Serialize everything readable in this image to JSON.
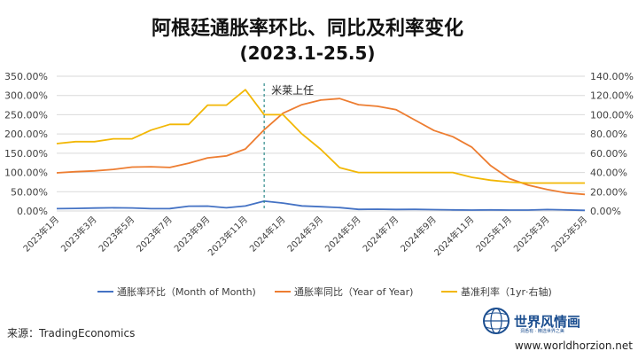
{
  "title_line1": "阿根廷通胀率环比、同比及利率变化",
  "title_line2": "(2023.1-25.5)",
  "source": "来源：TradingEconomics",
  "brand": {
    "name": "世界风情画",
    "tagline": "洞悉有 · 精选世界之美",
    "website": "www.worldhorzion.net"
  },
  "colors": {
    "mom": "#4472C4",
    "yoy": "#ED7D31",
    "rate": "#F2B705",
    "grid": "#d9d9d9",
    "annotation_line": "#2e8b8b"
  },
  "chart_data": {
    "type": "line",
    "x": [
      "2023年1月",
      "2023年2月",
      "2023年3月",
      "2023年4月",
      "2023年5月",
      "2023年6月",
      "2023年7月",
      "2023年8月",
      "2023年9月",
      "2023年10月",
      "2023年11月",
      "2023年12月",
      "2024年1月",
      "2024年2月",
      "2024年3月",
      "2024年4月",
      "2024年5月",
      "2024年6月",
      "2024年7月",
      "2024年8月",
      "2024年9月",
      "2024年10月",
      "2024年11月",
      "2024年12月",
      "2025年1月",
      "2025年2月",
      "2025年3月",
      "2025年4月",
      "2025年5月"
    ],
    "x_tick_labels": [
      "2023年1月",
      "2023年3月",
      "2023年5月",
      "2023年7月",
      "2023年9月",
      "2023年11月",
      "2024年1月",
      "2024年3月",
      "2024年5月",
      "2024年7月",
      "2024年9月",
      "2024年11月",
      "2025年1月",
      "2025年3月",
      "2025年5月"
    ],
    "y_left": {
      "ticks": [
        "0.00%",
        "50.00%",
        "100.00%",
        "150.00%",
        "200.00%",
        "250.00%",
        "300.00%",
        "350.00%"
      ],
      "min": 0,
      "max": 350
    },
    "y_right": {
      "ticks": [
        "0.00%",
        "20.00%",
        "40.00%",
        "60.00%",
        "80.00%",
        "100.00%",
        "120.00%",
        "140.00%"
      ],
      "min": 0,
      "max": 140
    },
    "series": [
      {
        "name": "通胀率环比（Month of Month)",
        "axis": "left",
        "color": "#4472C4",
        "values": [
          6,
          6.6,
          7.7,
          8.4,
          7.8,
          6,
          6.3,
          12.4,
          12.7,
          8.3,
          12.8,
          25.5,
          20.6,
          13.2,
          11,
          8.8,
          4.2,
          4.6,
          4,
          4.2,
          3.5,
          2.7,
          2.4,
          2.7,
          2.2,
          2.4,
          3.7,
          2.8,
          1.5
        ]
      },
      {
        "name": "通胀率同比（Year of Year)",
        "axis": "left",
        "color": "#ED7D31",
        "values": [
          99,
          102,
          104,
          108,
          114,
          115,
          113,
          124,
          138,
          143,
          161,
          211,
          254,
          276,
          288,
          292,
          276,
          272,
          263,
          236,
          209,
          193,
          166,
          118,
          84,
          67,
          56,
          47,
          43
        ]
      },
      {
        "name": "基准利率（1yr·右轴)",
        "axis": "right",
        "color": "#F2B705",
        "values": [
          70,
          72,
          72,
          75,
          75,
          84,
          90,
          90,
          110,
          110,
          126,
          100,
          100,
          80,
          64,
          45,
          40,
          40,
          40,
          40,
          40,
          40,
          35,
          32,
          30,
          29,
          29,
          29,
          29
        ]
      }
    ],
    "annotation": {
      "label": "米莱上任",
      "at": "2023年12月"
    },
    "grid": true,
    "legend_position": "bottom"
  }
}
